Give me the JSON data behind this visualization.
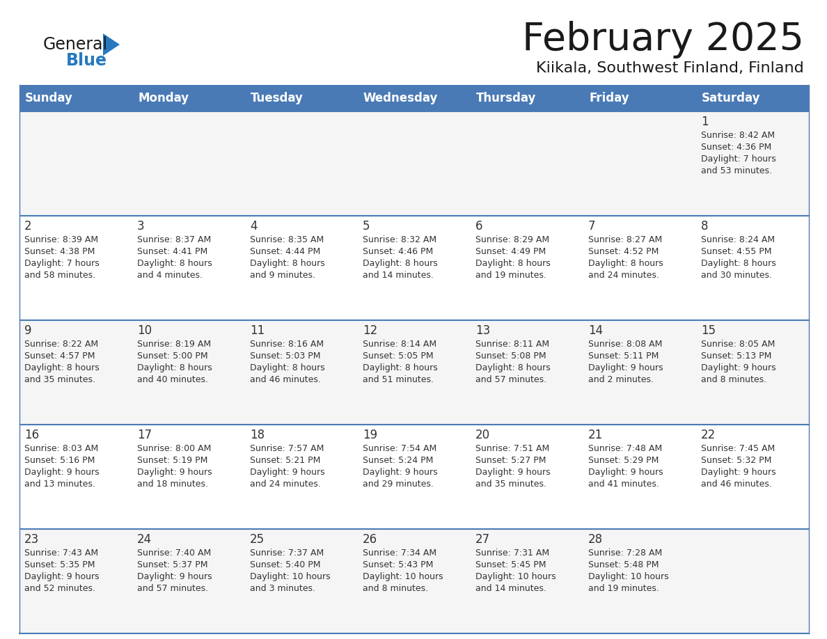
{
  "title": "February 2025",
  "subtitle": "Kiikala, Southwest Finland, Finland",
  "days_of_week": [
    "Sunday",
    "Monday",
    "Tuesday",
    "Wednesday",
    "Thursday",
    "Friday",
    "Saturday"
  ],
  "header_bg": "#4a7ab5",
  "header_text": "#ffffff",
  "cell_bg_odd": "#f5f5f5",
  "cell_bg_even": "#ffffff",
  "border_color": "#4a7ab5",
  "text_color": "#333333",
  "day_num_color": "#333333",
  "logo_color_general": "#1a1a1a",
  "logo_color_blue": "#2878c0",
  "calendar_data": [
    [
      null,
      null,
      null,
      null,
      null,
      null,
      {
        "day": 1,
        "sunrise": "8:42 AM",
        "sunset": "4:36 PM",
        "daylight": "7 hours and 53 minutes."
      }
    ],
    [
      {
        "day": 2,
        "sunrise": "8:39 AM",
        "sunset": "4:38 PM",
        "daylight": "7 hours and 58 minutes."
      },
      {
        "day": 3,
        "sunrise": "8:37 AM",
        "sunset": "4:41 PM",
        "daylight": "8 hours and 4 minutes."
      },
      {
        "day": 4,
        "sunrise": "8:35 AM",
        "sunset": "4:44 PM",
        "daylight": "8 hours and 9 minutes."
      },
      {
        "day": 5,
        "sunrise": "8:32 AM",
        "sunset": "4:46 PM",
        "daylight": "8 hours and 14 minutes."
      },
      {
        "day": 6,
        "sunrise": "8:29 AM",
        "sunset": "4:49 PM",
        "daylight": "8 hours and 19 minutes."
      },
      {
        "day": 7,
        "sunrise": "8:27 AM",
        "sunset": "4:52 PM",
        "daylight": "8 hours and 24 minutes."
      },
      {
        "day": 8,
        "sunrise": "8:24 AM",
        "sunset": "4:55 PM",
        "daylight": "8 hours and 30 minutes."
      }
    ],
    [
      {
        "day": 9,
        "sunrise": "8:22 AM",
        "sunset": "4:57 PM",
        "daylight": "8 hours and 35 minutes."
      },
      {
        "day": 10,
        "sunrise": "8:19 AM",
        "sunset": "5:00 PM",
        "daylight": "8 hours and 40 minutes."
      },
      {
        "day": 11,
        "sunrise": "8:16 AM",
        "sunset": "5:03 PM",
        "daylight": "8 hours and 46 minutes."
      },
      {
        "day": 12,
        "sunrise": "8:14 AM",
        "sunset": "5:05 PM",
        "daylight": "8 hours and 51 minutes."
      },
      {
        "day": 13,
        "sunrise": "8:11 AM",
        "sunset": "5:08 PM",
        "daylight": "8 hours and 57 minutes."
      },
      {
        "day": 14,
        "sunrise": "8:08 AM",
        "sunset": "5:11 PM",
        "daylight": "9 hours and 2 minutes."
      },
      {
        "day": 15,
        "sunrise": "8:05 AM",
        "sunset": "5:13 PM",
        "daylight": "9 hours and 8 minutes."
      }
    ],
    [
      {
        "day": 16,
        "sunrise": "8:03 AM",
        "sunset": "5:16 PM",
        "daylight": "9 hours and 13 minutes."
      },
      {
        "day": 17,
        "sunrise": "8:00 AM",
        "sunset": "5:19 PM",
        "daylight": "9 hours and 18 minutes."
      },
      {
        "day": 18,
        "sunrise": "7:57 AM",
        "sunset": "5:21 PM",
        "daylight": "9 hours and 24 minutes."
      },
      {
        "day": 19,
        "sunrise": "7:54 AM",
        "sunset": "5:24 PM",
        "daylight": "9 hours and 29 minutes."
      },
      {
        "day": 20,
        "sunrise": "7:51 AM",
        "sunset": "5:27 PM",
        "daylight": "9 hours and 35 minutes."
      },
      {
        "day": 21,
        "sunrise": "7:48 AM",
        "sunset": "5:29 PM",
        "daylight": "9 hours and 41 minutes."
      },
      {
        "day": 22,
        "sunrise": "7:45 AM",
        "sunset": "5:32 PM",
        "daylight": "9 hours and 46 minutes."
      }
    ],
    [
      {
        "day": 23,
        "sunrise": "7:43 AM",
        "sunset": "5:35 PM",
        "daylight": "9 hours and 52 minutes."
      },
      {
        "day": 24,
        "sunrise": "7:40 AM",
        "sunset": "5:37 PM",
        "daylight": "9 hours and 57 minutes."
      },
      {
        "day": 25,
        "sunrise": "7:37 AM",
        "sunset": "5:40 PM",
        "daylight": "10 hours and 3 minutes."
      },
      {
        "day": 26,
        "sunrise": "7:34 AM",
        "sunset": "5:43 PM",
        "daylight": "10 hours and 8 minutes."
      },
      {
        "day": 27,
        "sunrise": "7:31 AM",
        "sunset": "5:45 PM",
        "daylight": "10 hours and 14 minutes."
      },
      {
        "day": 28,
        "sunrise": "7:28 AM",
        "sunset": "5:48 PM",
        "daylight": "10 hours and 19 minutes."
      },
      null
    ]
  ]
}
